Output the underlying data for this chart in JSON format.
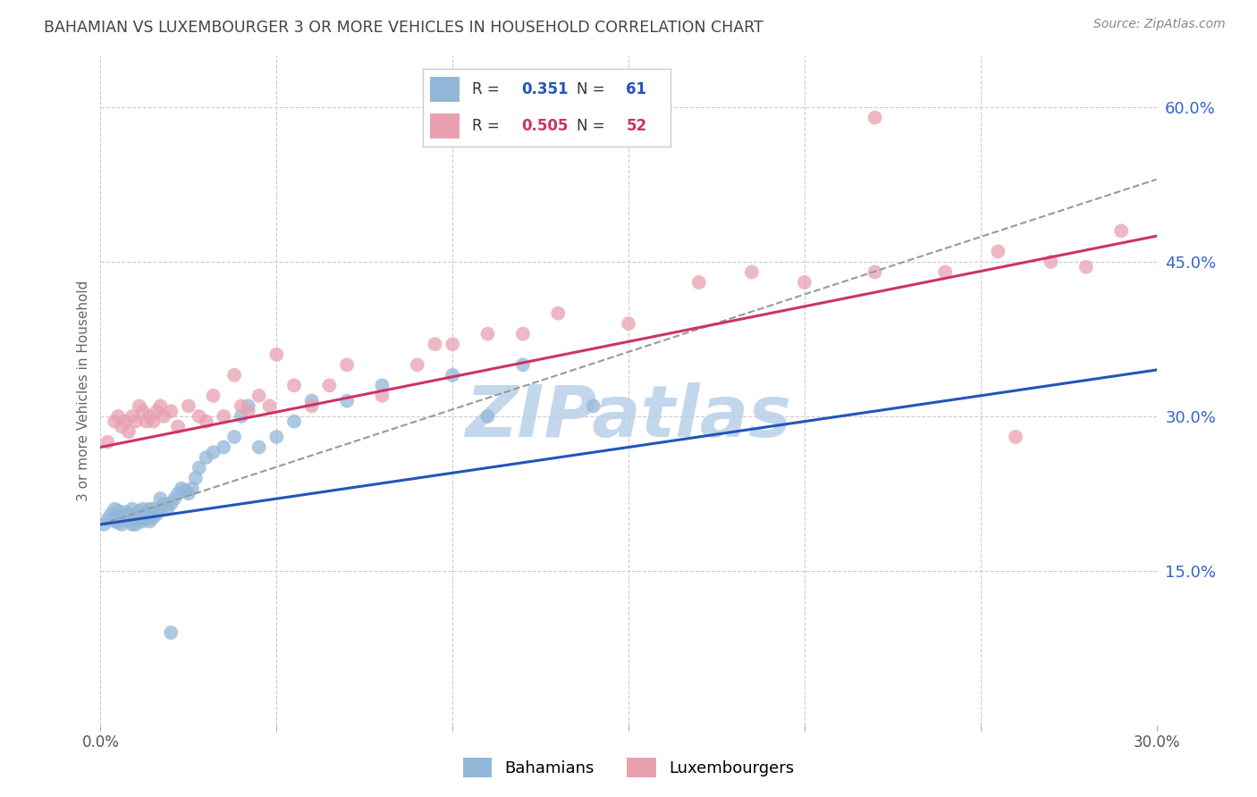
{
  "title": "BAHAMIAN VS LUXEMBOURGER 3 OR MORE VEHICLES IN HOUSEHOLD CORRELATION CHART",
  "source_text": "Source: ZipAtlas.com",
  "ylabel": "3 or more Vehicles in Household",
  "xlabel": "",
  "x_min": 0.0,
  "x_max": 0.3,
  "y_min": 0.0,
  "y_max": 0.65,
  "x_ticks": [
    0.0,
    0.05,
    0.1,
    0.15,
    0.2,
    0.25,
    0.3
  ],
  "y_ticks_right": [
    0.15,
    0.3,
    0.45,
    0.6
  ],
  "y_tick_labels_right": [
    "15.0%",
    "30.0%",
    "45.0%",
    "60.0%"
  ],
  "legend_blue_r": "0.351",
  "legend_blue_n": "61",
  "legend_pink_r": "0.505",
  "legend_pink_n": "52",
  "legend_label_blue": "Bahamians",
  "legend_label_pink": "Luxembourgers",
  "blue_color": "#92b8d9",
  "pink_color": "#e8a0b0",
  "blue_line_color": "#2255bb",
  "pink_line_color": "#cc3366",
  "dashed_line_color": "#999999",
  "watermark_text": "ZIPatlas",
  "watermark_color": "#b8d0e8",
  "title_color": "#444444",
  "right_label_color": "#3366cc",
  "background_color": "#ffffff",
  "grid_color": "#cccccc",
  "blue_scatter_x": [
    0.001,
    0.002,
    0.003,
    0.004,
    0.004,
    0.005,
    0.005,
    0.005,
    0.006,
    0.006,
    0.007,
    0.007,
    0.008,
    0.008,
    0.009,
    0.009,
    0.009,
    0.01,
    0.01,
    0.01,
    0.011,
    0.011,
    0.012,
    0.012,
    0.013,
    0.013,
    0.014,
    0.014,
    0.015,
    0.015,
    0.016,
    0.017,
    0.017,
    0.018,
    0.019,
    0.02,
    0.021,
    0.022,
    0.023,
    0.024,
    0.025,
    0.026,
    0.027,
    0.028,
    0.03,
    0.032,
    0.035,
    0.038,
    0.04,
    0.042,
    0.045,
    0.05,
    0.055,
    0.06,
    0.07,
    0.08,
    0.1,
    0.11,
    0.12,
    0.14,
    0.02
  ],
  "blue_scatter_y": [
    0.195,
    0.2,
    0.205,
    0.198,
    0.21,
    0.197,
    0.203,
    0.208,
    0.195,
    0.202,
    0.2,
    0.207,
    0.198,
    0.205,
    0.195,
    0.2,
    0.21,
    0.195,
    0.2,
    0.205,
    0.2,
    0.208,
    0.198,
    0.21,
    0.2,
    0.207,
    0.198,
    0.21,
    0.202,
    0.21,
    0.205,
    0.21,
    0.22,
    0.215,
    0.21,
    0.215,
    0.22,
    0.225,
    0.23,
    0.228,
    0.225,
    0.23,
    0.24,
    0.25,
    0.26,
    0.265,
    0.27,
    0.28,
    0.3,
    0.31,
    0.27,
    0.28,
    0.295,
    0.315,
    0.315,
    0.33,
    0.34,
    0.3,
    0.35,
    0.31,
    0.09
  ],
  "pink_scatter_x": [
    0.002,
    0.004,
    0.005,
    0.006,
    0.007,
    0.008,
    0.009,
    0.01,
    0.011,
    0.012,
    0.013,
    0.014,
    0.015,
    0.016,
    0.017,
    0.018,
    0.02,
    0.022,
    0.025,
    0.028,
    0.03,
    0.032,
    0.035,
    0.038,
    0.04,
    0.042,
    0.045,
    0.048,
    0.05,
    0.055,
    0.06,
    0.065,
    0.07,
    0.08,
    0.09,
    0.095,
    0.1,
    0.11,
    0.12,
    0.13,
    0.15,
    0.17,
    0.185,
    0.2,
    0.22,
    0.24,
    0.255,
    0.27,
    0.28,
    0.29,
    0.22,
    0.26
  ],
  "pink_scatter_y": [
    0.275,
    0.295,
    0.3,
    0.29,
    0.295,
    0.285,
    0.3,
    0.295,
    0.31,
    0.305,
    0.295,
    0.3,
    0.295,
    0.305,
    0.31,
    0.3,
    0.305,
    0.29,
    0.31,
    0.3,
    0.295,
    0.32,
    0.3,
    0.34,
    0.31,
    0.305,
    0.32,
    0.31,
    0.36,
    0.33,
    0.31,
    0.33,
    0.35,
    0.32,
    0.35,
    0.37,
    0.37,
    0.38,
    0.38,
    0.4,
    0.39,
    0.43,
    0.44,
    0.43,
    0.44,
    0.44,
    0.46,
    0.45,
    0.445,
    0.48,
    0.59,
    0.28
  ],
  "blue_line_x0": 0.0,
  "blue_line_y0": 0.195,
  "blue_line_x1": 0.3,
  "blue_line_y1": 0.345,
  "pink_line_x0": 0.0,
  "pink_line_y0": 0.27,
  "pink_line_x1": 0.3,
  "pink_line_y1": 0.475,
  "dash_line_x0": 0.0,
  "dash_line_y0": 0.195,
  "dash_line_x1": 0.3,
  "dash_line_y1": 0.53
}
